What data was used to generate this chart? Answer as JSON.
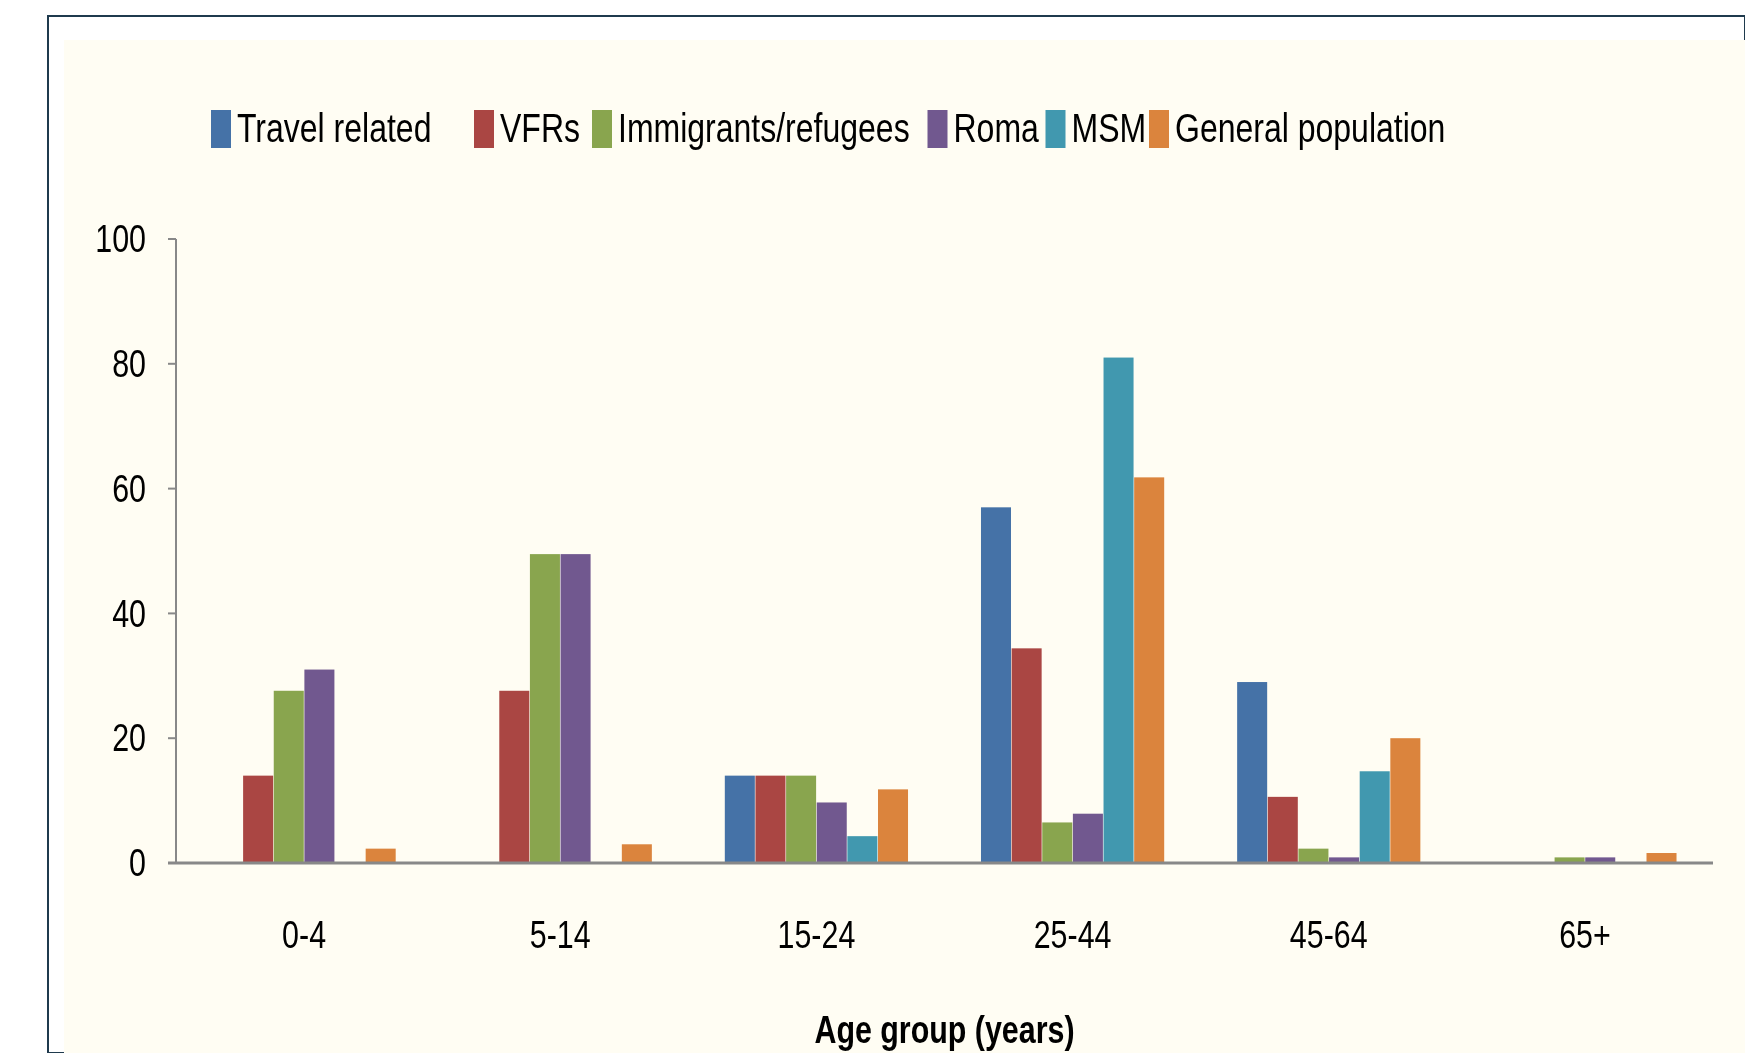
{
  "chart_data": {
    "type": "bar",
    "xlabel": "Age group (years)",
    "categories": [
      "0-4",
      "5-14",
      "15-24",
      "25-44",
      "45-64",
      "65+"
    ],
    "series": [
      {
        "name": "Travel related",
        "color": "#4572a7",
        "values": [
          0,
          0,
          14,
          57,
          29,
          0
        ]
      },
      {
        "name": "VFRs",
        "color": "#aa4643",
        "values": [
          14,
          27.6,
          14,
          34.4,
          10.6,
          0
        ]
      },
      {
        "name": "Immigrants/refugees",
        "color": "#89a54e",
        "values": [
          27.6,
          49.5,
          14,
          6.5,
          2.3,
          0.9
        ]
      },
      {
        "name": "Roma",
        "color": "#71588f",
        "values": [
          31,
          49.5,
          9.7,
          7.9,
          0.9,
          0.9
        ]
      },
      {
        "name": "MSM",
        "color": "#4198af",
        "values": [
          0,
          0,
          4.3,
          81,
          14.7,
          0
        ]
      },
      {
        "name": "General population",
        "color": "#db843d",
        "values": [
          2.3,
          3,
          11.8,
          61.8,
          20,
          1.6
        ]
      }
    ],
    "ylim": [
      0,
      100
    ],
    "yticks": [
      0,
      20,
      40,
      60,
      80,
      100
    ],
    "grid": false,
    "legend": "top"
  }
}
